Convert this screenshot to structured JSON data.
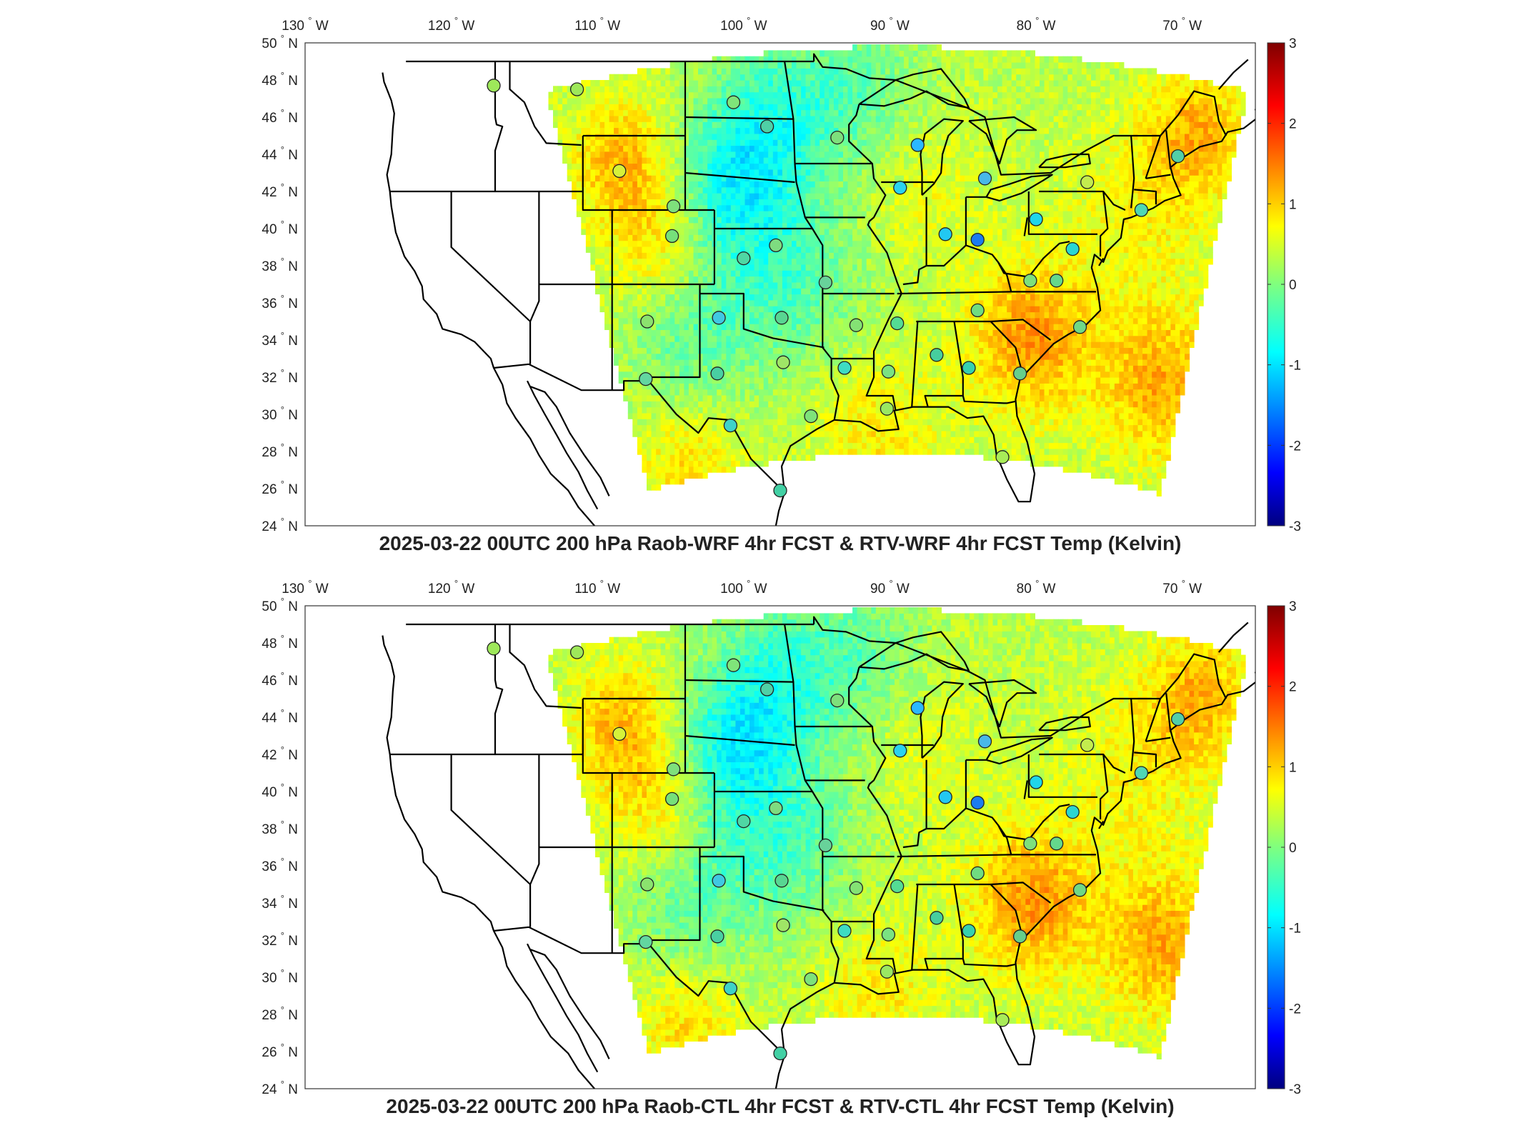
{
  "panels": [
    {
      "title": "2025-03-22 00UTC 200 hPa Raob-WRF 4hr FCST & RTV-WRF 4hr FCST Temp (Kelvin)",
      "seed": 11,
      "lon_labels": [
        "130",
        "120",
        "110",
        "100",
        "90",
        "80",
        "70"
      ],
      "lon_suffix": "W",
      "lat_labels": [
        "50",
        "48",
        "46",
        "44",
        "42",
        "40",
        "38",
        "36",
        "34",
        "32",
        "30",
        "28",
        "26",
        "24"
      ],
      "lat_suffix": "N",
      "degree_symbol": "°",
      "colorbar": {
        "min": -3,
        "max": 3,
        "ticks": [
          "3",
          "2",
          "1",
          "0",
          "-1",
          "-2",
          "-3"
        ]
      },
      "raob_colors": [
        "#9ee85a",
        "#9ee85a",
        "#d6f23a",
        "#7ee07c",
        "#7fe57a",
        "#4fd0a6",
        "#7ee07c",
        "#2bb8ff",
        "#48b8e8",
        "#2ad2f0",
        "#22c8f2",
        "#1b7cf0",
        "#c3ec4e",
        "#1fd6ea",
        "#2ad6d2",
        "#4fd7b4",
        "#52cfa8",
        "#64d88c",
        "#7ee07c",
        "#70dc80",
        "#46ce9e",
        "#66cf8c",
        "#70d886",
        "#36d0b0",
        "#54dc94",
        "#7ae282",
        "#3ddcc3",
        "#9ae862",
        "#7ee27a",
        "#42d0a4",
        "#3ed2c8",
        "#49cfa2",
        "#62d6a0",
        "#8be26e",
        "#58d692",
        "#40c8e2",
        "#9fe566",
        "#84e274",
        "#68d29a",
        "#7edc80",
        "#4fd7a4",
        "#76e07a",
        "#a8eb58"
      ]
    },
    {
      "title": "2025-03-22 00UTC 200 hPa Raob-CTL 4hr FCST & RTV-CTL 4hr FCST Temp (Kelvin)",
      "seed": 29,
      "lon_labels": [
        "130",
        "120",
        "110",
        "100",
        "90",
        "80",
        "70"
      ],
      "lon_suffix": "W",
      "lat_labels": [
        "50",
        "48",
        "46",
        "44",
        "42",
        "40",
        "38",
        "36",
        "34",
        "32",
        "30",
        "28",
        "26",
        "24"
      ],
      "lat_suffix": "N",
      "degree_symbol": "°",
      "colorbar": {
        "min": -3,
        "max": 3,
        "ticks": [
          "3",
          "2",
          "1",
          "0",
          "-1",
          "-2",
          "-3"
        ]
      },
      "raob_colors": [
        "#9ee85a",
        "#9ee85a",
        "#d6f23a",
        "#7ee07c",
        "#7fe57a",
        "#4fd0a6",
        "#7ee07c",
        "#2bb8ff",
        "#48b8e8",
        "#2ad2f0",
        "#22c8f2",
        "#1b7cf0",
        "#c3ec4e",
        "#1fd6ea",
        "#2ad6d2",
        "#4fd7b4",
        "#52cfa8",
        "#64d88c",
        "#7ee07c",
        "#70dc80",
        "#46ce9e",
        "#66cf8c",
        "#70d886",
        "#36d0b0",
        "#54dc94",
        "#7ae282",
        "#3ddcc3",
        "#9ae862",
        "#7ee27a",
        "#42d0a4",
        "#3ed2c8",
        "#49cfa2",
        "#62d6a0",
        "#8be26e",
        "#58d692",
        "#40c8e2",
        "#9fe566",
        "#84e274",
        "#68d29a",
        "#7edc80",
        "#4fd7a4",
        "#76e07a",
        "#a8eb58"
      ]
    }
  ],
  "raob_stations": [
    {
      "lon": -117.1,
      "lat": 47.7
    },
    {
      "lon": -111.4,
      "lat": 47.5
    },
    {
      "lon": -108.5,
      "lat": 43.1
    },
    {
      "lon": -104.8,
      "lat": 41.2
    },
    {
      "lon": -100.7,
      "lat": 46.8
    },
    {
      "lon": -98.4,
      "lat": 45.5
    },
    {
      "lon": -93.6,
      "lat": 44.9
    },
    {
      "lon": -88.1,
      "lat": 44.5
    },
    {
      "lon": -83.5,
      "lat": 42.7
    },
    {
      "lon": -89.3,
      "lat": 42.2
    },
    {
      "lon": -86.2,
      "lat": 39.7
    },
    {
      "lon": -84.0,
      "lat": 39.4
    },
    {
      "lon": -76.5,
      "lat": 42.5
    },
    {
      "lon": -80.0,
      "lat": 40.5
    },
    {
      "lon": -77.5,
      "lat": 38.9
    },
    {
      "lon": -72.8,
      "lat": 41.0
    },
    {
      "lon": -70.3,
      "lat": 43.9
    },
    {
      "lon": -78.6,
      "lat": 37.2
    },
    {
      "lon": -80.4,
      "lat": 37.2
    },
    {
      "lon": -84.0,
      "lat": 35.6
    },
    {
      "lon": -86.8,
      "lat": 33.2
    },
    {
      "lon": -81.1,
      "lat": 32.2
    },
    {
      "lon": -77.0,
      "lat": 34.7
    },
    {
      "lon": -84.6,
      "lat": 32.5
    },
    {
      "lon": -89.5,
      "lat": 34.9
    },
    {
      "lon": -90.1,
      "lat": 32.3
    },
    {
      "lon": -93.1,
      "lat": 32.5
    },
    {
      "lon": -90.2,
      "lat": 30.3
    },
    {
      "lon": -95.4,
      "lat": 29.9
    },
    {
      "lon": -97.5,
      "lat": 25.9
    },
    {
      "lon": -100.9,
      "lat": 29.4
    },
    {
      "lon": -101.8,
      "lat": 32.2
    },
    {
      "lon": -106.7,
      "lat": 31.9
    },
    {
      "lon": -106.6,
      "lat": 35.0
    },
    {
      "lon": -97.4,
      "lat": 35.2
    },
    {
      "lon": -101.7,
      "lat": 35.2
    },
    {
      "lon": -97.3,
      "lat": 32.8
    },
    {
      "lon": -92.3,
      "lat": 34.8
    },
    {
      "lon": -94.4,
      "lat": 37.1
    },
    {
      "lon": -97.8,
      "lat": 39.1
    },
    {
      "lon": -100.0,
      "lat": 38.4
    },
    {
      "lon": -104.9,
      "lat": 39.6
    },
    {
      "lon": -82.3,
      "lat": 27.7
    }
  ]
}
